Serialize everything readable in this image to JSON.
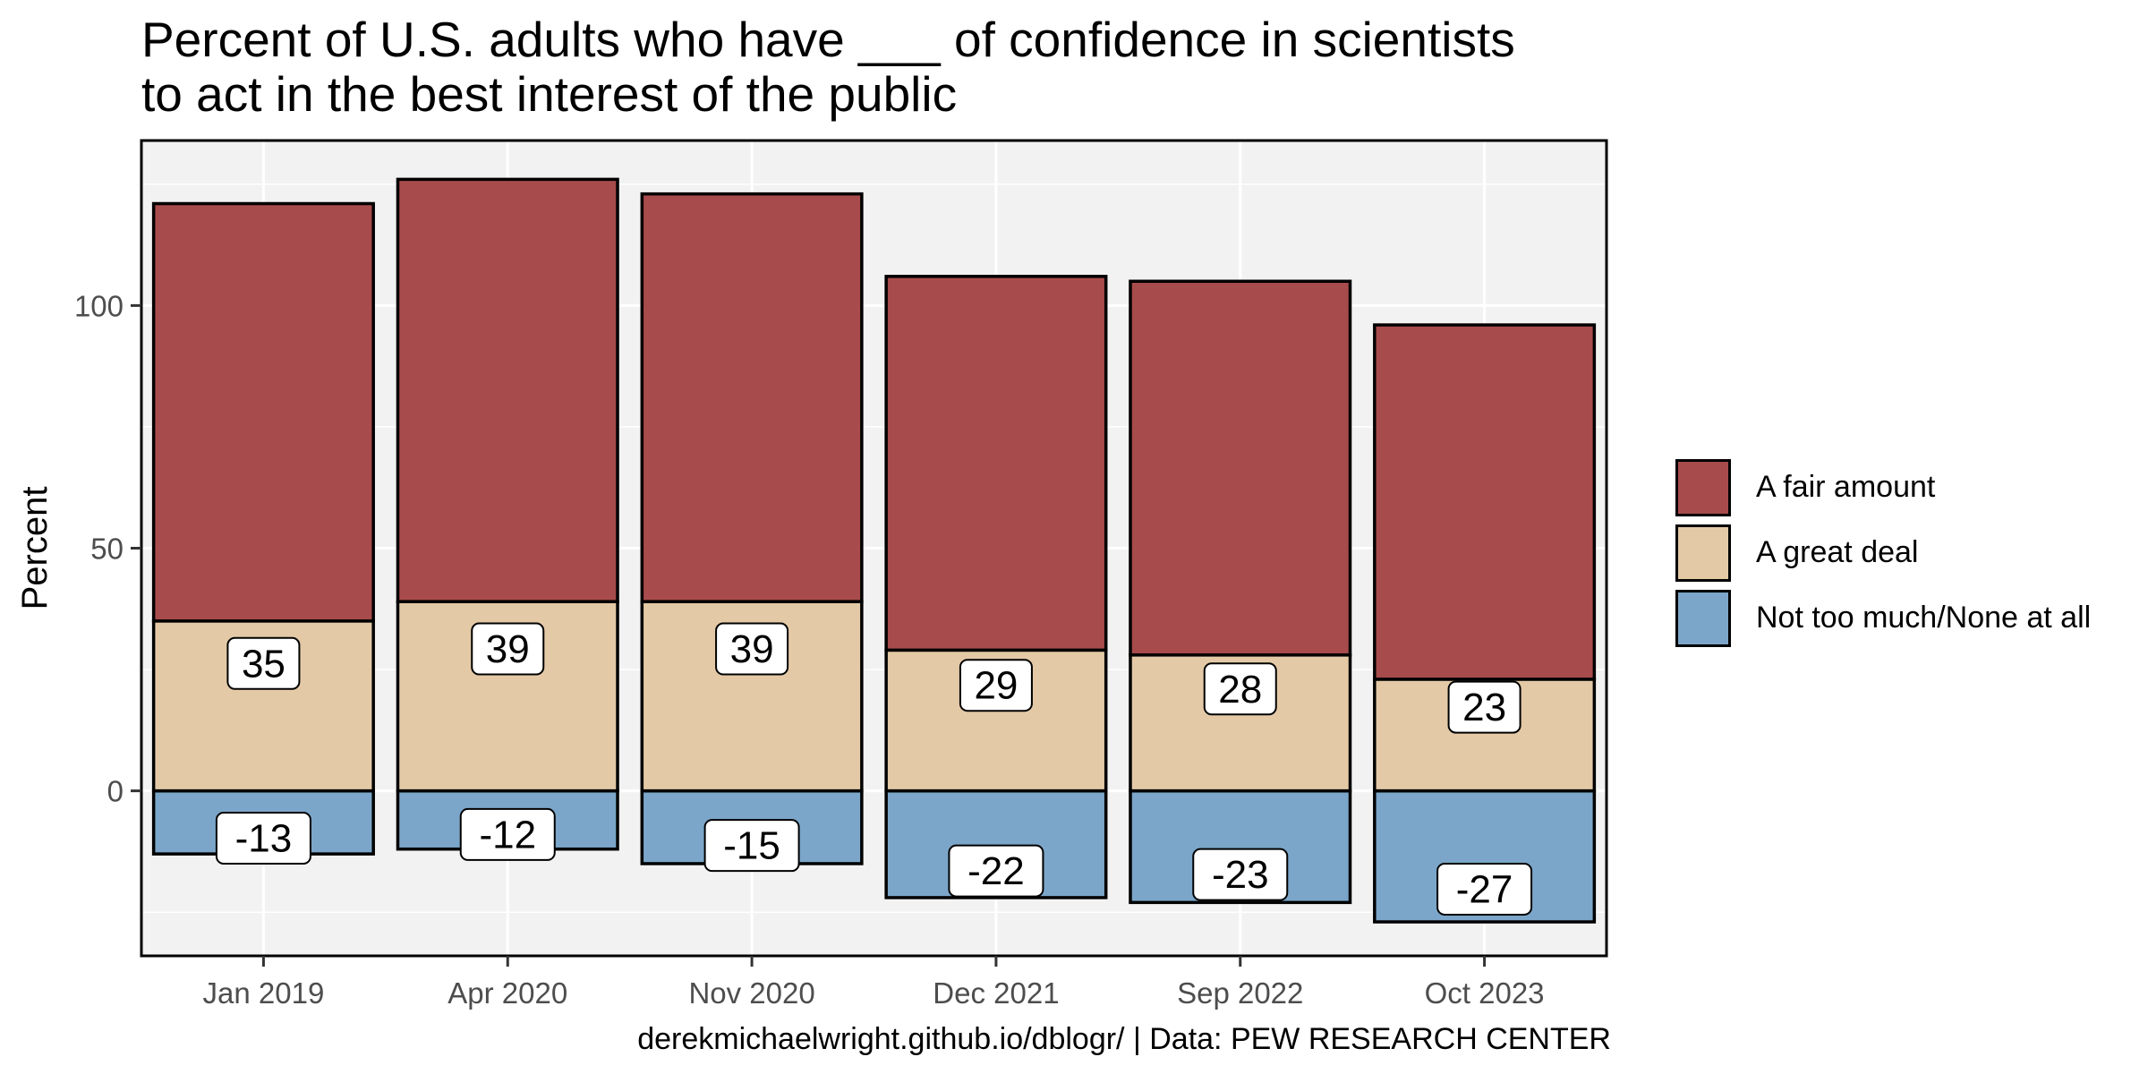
{
  "chart_data": {
    "type": "bar",
    "stacked": true,
    "title_lines": [
      "Percent of U.S. adults who have ___ of confidence in scientists",
      "to act in the best interest of the public"
    ],
    "xlabel": "",
    "ylabel": "Percent",
    "categories": [
      "Jan 2019",
      "Apr 2020",
      "Nov 2020",
      "Dec 2021",
      "Sep 2022",
      "Oct 2023"
    ],
    "series": [
      {
        "name": "Not too much/None at all",
        "color": "#7ba6c9",
        "values": [
          -13,
          -12,
          -15,
          -22,
          -23,
          -27
        ]
      },
      {
        "name": "A great deal",
        "color": "#e3c9a6",
        "values": [
          35,
          39,
          39,
          29,
          28,
          23
        ]
      },
      {
        "name": "A fair amount",
        "color": "#a84b4c",
        "values": [
          86,
          87,
          84,
          77,
          77,
          73
        ]
      }
    ],
    "labeled_series": [
      "Not too much/None at all",
      "A great deal"
    ],
    "legend_order": [
      "A fair amount",
      "A great deal",
      "Not too much/None at all"
    ],
    "yticks": [
      0,
      50,
      100
    ],
    "ylim": [
      -34,
      134
    ],
    "grid": true,
    "legend_position": "right",
    "caption": "derekmichaelwright.github.io/dblogr/ | Data: PEW RESEARCH CENTER"
  }
}
